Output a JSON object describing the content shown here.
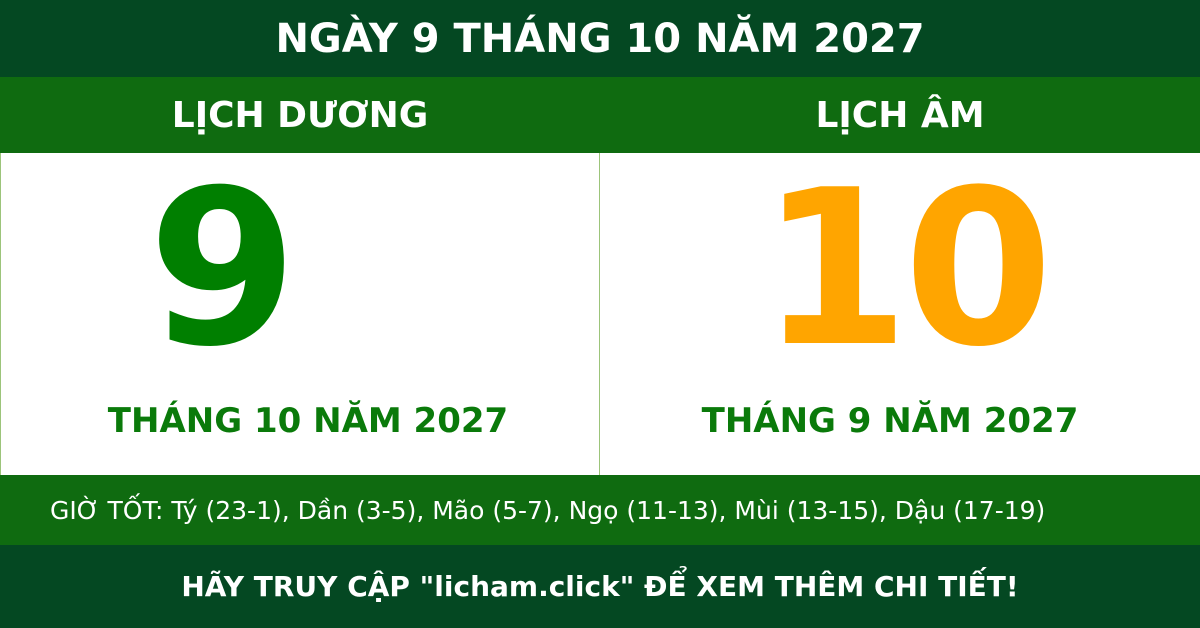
{
  "header": {
    "title": "NGÀY 9 THÁNG 10 NĂM 2027"
  },
  "columns": {
    "solar": {
      "label": "LỊCH DƯƠNG",
      "day": "9",
      "month_year": "THÁNG 10 NĂM 2027",
      "color": "#007f00"
    },
    "lunar": {
      "label": "LỊCH ÂM",
      "day": "10",
      "month_year": "THÁNG 9 NĂM 2027",
      "color": "#ffa500"
    }
  },
  "good_hours": "GIỜ TỐT: Tý (23-1), Dần (3-5), Mão (5-7), Ngọ (11-13), Mùi (13-15), Dậu (17-19)",
  "footer": {
    "cta": "HÃY TRUY CẬP \"licham.click\" ĐỂ XEM THÊM CHI TIẾT!"
  },
  "colors": {
    "dark_green": "#044822",
    "green": "#0f6b10"
  }
}
